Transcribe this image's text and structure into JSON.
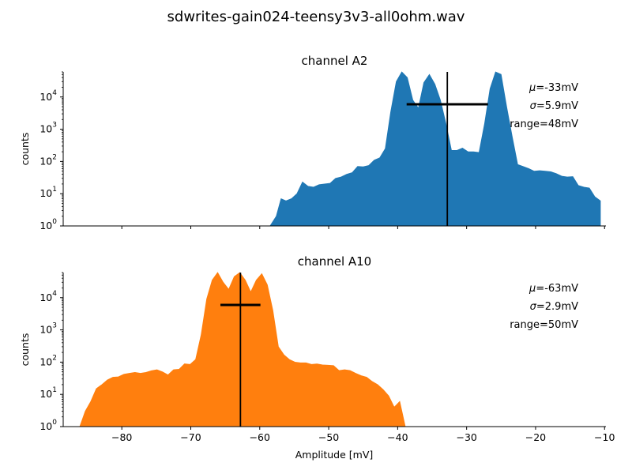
{
  "chart_data": {
    "type": "area",
    "title": "sdwrites-gain024-teensy3v3-all0ohm.wav",
    "xlabel": "Amplitude [mV]",
    "ylabel": "counts",
    "xlim": [
      -88.5,
      -9.8
    ],
    "x_ticks": [
      -80,
      -70,
      -60,
      -50,
      -40,
      -30,
      -20,
      -10
    ],
    "x_tick_labels": [
      "−80",
      "−70",
      "−60",
      "−50",
      "−40",
      "−30",
      "−20",
      "−10"
    ],
    "yscale": "log",
    "ylim": [
      1,
      60000
    ],
    "y_tick_exponents": [
      0,
      1,
      2,
      3,
      4
    ],
    "y_tick_base": "10",
    "grid": false,
    "panels": [
      {
        "title": "channel A2",
        "color": "#1f77b4",
        "mean": -32.8,
        "std": 5.9,
        "stats": {
          "mu": "=-33mV",
          "sigma": "=5.9mV",
          "range": "range=48mV"
        },
        "x": [
          -58.5,
          -57.6,
          -56.9,
          -56.2,
          -55.4,
          -54.6,
          -53.8,
          -53.0,
          -52.2,
          -51.4,
          -50.6,
          -49.8,
          -49.0,
          -48.2,
          -47.4,
          -46.6,
          -45.8,
          -45.0,
          -44.2,
          -43.4,
          -42.6,
          -41.8,
          -41.0,
          -40.2,
          -39.4,
          -38.6,
          -37.8,
          -37.0,
          -36.2,
          -35.4,
          -34.6,
          -33.8,
          -33.0,
          -32.2,
          -31.4,
          -30.6,
          -29.8,
          -29.0,
          -28.2,
          -27.4,
          -26.6,
          -25.8,
          -25.0,
          -24.2,
          -23.4,
          -22.6,
          -21.8,
          -21.0,
          -20.2,
          -19.4,
          -18.6,
          -17.8,
          -17.0,
          -16.2,
          -15.4,
          -14.6,
          -13.8,
          -13.0,
          -12.2,
          -11.4,
          -10.6
        ],
        "y": [
          1,
          2,
          7,
          6,
          7,
          10,
          23,
          17,
          16,
          19,
          20,
          21,
          30,
          33,
          40,
          45,
          70,
          68,
          75,
          110,
          130,
          250,
          3500,
          30000,
          60000,
          40000,
          8000,
          4500,
          28000,
          50000,
          25000,
          8000,
          1500,
          220,
          220,
          260,
          200,
          200,
          190,
          1500,
          18000,
          60000,
          50000,
          5000,
          600,
          80,
          70,
          60,
          50,
          52,
          50,
          48,
          42,
          35,
          33,
          34,
          18,
          16,
          15,
          8,
          6
        ]
      },
      {
        "title": "channel A10",
        "color": "#ff7f0e",
        "mean": -62.8,
        "std": 2.9,
        "stats": {
          "mu": "=-63mV",
          "sigma": "=2.9mV",
          "range": "range=50mV"
        },
        "x": [
          -86.1,
          -85.3,
          -84.5,
          -83.7,
          -82.9,
          -82.1,
          -81.3,
          -80.5,
          -79.7,
          -78.9,
          -78.1,
          -77.3,
          -76.5,
          -75.7,
          -74.9,
          -74.1,
          -73.3,
          -72.5,
          -71.7,
          -70.9,
          -70.1,
          -69.3,
          -68.5,
          -67.7,
          -66.9,
          -66.1,
          -65.3,
          -64.5,
          -63.7,
          -62.9,
          -62.1,
          -61.3,
          -60.5,
          -59.7,
          -58.9,
          -58.1,
          -57.3,
          -56.5,
          -55.7,
          -54.9,
          -54.1,
          -53.3,
          -52.5,
          -51.7,
          -50.9,
          -50.1,
          -49.3,
          -48.5,
          -47.7,
          -46.9,
          -46.1,
          -45.3,
          -44.5,
          -43.7,
          -42.9,
          -42.1,
          -41.3,
          -40.5,
          -39.7,
          -38.9
        ],
        "y": [
          1,
          3,
          6,
          15,
          20,
          28,
          34,
          35,
          42,
          45,
          48,
          45,
          48,
          54,
          58,
          50,
          40,
          58,
          60,
          88,
          85,
          120,
          700,
          9000,
          35000,
          60000,
          30000,
          18000,
          45000,
          60000,
          35000,
          15000,
          35000,
          55000,
          25000,
          4000,
          300,
          170,
          120,
          100,
          95,
          95,
          85,
          88,
          82,
          80,
          78,
          55,
          58,
          55,
          45,
          38,
          34,
          25,
          20,
          14,
          9,
          4,
          6,
          1
        ]
      }
    ]
  }
}
